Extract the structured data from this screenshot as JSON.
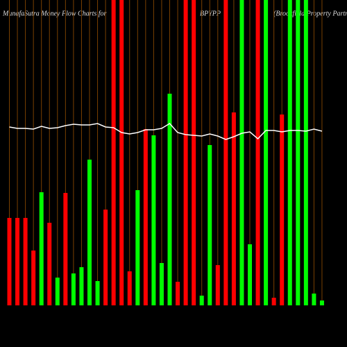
{
  "chart_data": {
    "type": "bar",
    "title": "MunafaSutra  Money Flow  Charts for",
    "subtitle": "BPYPP",
    "company": "(Brookfield Property Partners L",
    "categories": [
      null,
      null,
      null,
      null,
      null,
      null,
      null,
      null,
      null,
      null,
      null,
      null,
      null,
      null,
      null,
      null,
      null,
      null,
      null,
      null,
      null,
      null,
      null,
      null,
      null,
      null,
      null,
      null,
      null,
      null,
      null,
      null,
      null,
      null,
      null,
      null,
      null,
      null,
      null,
      null
    ],
    "series": [
      {
        "name": null,
        "type": "bar",
        "colors": [
          "#ff0000",
          "#ff0000",
          "#ff0000",
          "#ff0000",
          "#00ff00",
          "#ff0000",
          "#00ff00",
          "#ff0000",
          "#00ff00",
          "#00ff00",
          "#00ff00",
          "#00ff00",
          "#ff0000",
          "#ff0000",
          "#ff0000",
          "#ff0000",
          "#00ff00",
          "#ff0000",
          "#00ff00",
          "#00ff00",
          "#00ff00",
          "#ff0000",
          "#ff0000",
          "#ff0000",
          "#00ff00",
          "#00ff00",
          "#ff0000",
          "#ff0000",
          "#ff0000",
          "#00ff00",
          "#00ff00",
          "#ff0000",
          "#00ff00",
          "#ff0000",
          "#ff0000",
          "#00ff00",
          "#00ff00",
          "#00ff00",
          "#00ff00",
          "#00ff00"
        ],
        "values": [
          126,
          126,
          126,
          79,
          163,
          119,
          40,
          162,
          46,
          55,
          210,
          35,
          138,
          440,
          440,
          49,
          166,
          254,
          245,
          61,
          305,
          34,
          440,
          440,
          14,
          231,
          58,
          440,
          278,
          440,
          88,
          440,
          440,
          11,
          275,
          440,
          440,
          440,
          17,
          7
        ]
      },
      {
        "name": null,
        "type": "line",
        "color": "#ffffff",
        "values": [
          257,
          255,
          255,
          254,
          258,
          255,
          256,
          259,
          261,
          260,
          260,
          262,
          257,
          256,
          249,
          247,
          249,
          253,
          253,
          255,
          262,
          249,
          246,
          245,
          244,
          247,
          244,
          239,
          243,
          248,
          250,
          240,
          252,
          252,
          250,
          252,
          252,
          251,
          254,
          251
        ]
      }
    ],
    "ylim": [
      0,
      440
    ],
    "grid": true,
    "grid_color": "#7a4000"
  }
}
